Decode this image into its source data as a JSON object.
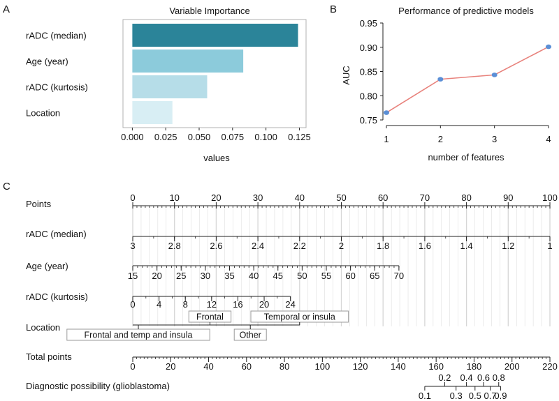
{
  "panel_labels": {
    "a": "A",
    "b": "B",
    "c": "C"
  },
  "colors": {
    "bar1": "#2b8499",
    "bar2": "#8ccbdb",
    "bar3": "#b6dde8",
    "bar4": "#d8eef4",
    "line": "#e8827c",
    "point": "#5b8fd6",
    "grid": "#d6d6d6",
    "axis": "#222222",
    "boxtext": "#888888"
  },
  "chart_data": [
    {
      "type": "bar",
      "id": "A",
      "title": "Variable Importance",
      "xlabel": "values",
      "ylabel": "",
      "categories": [
        "rADC (median)",
        "Age (year)",
        "rADC (kurtosis)",
        "Location"
      ],
      "values": [
        0.124,
        0.083,
        0.056,
        0.03
      ],
      "xlim": [
        -0.007,
        0.13
      ],
      "xticks": [
        "0.000",
        "0.025",
        "0.050",
        "0.075",
        "0.100",
        "0.125"
      ]
    },
    {
      "type": "line",
      "id": "B",
      "title": "Performance of predictive models",
      "xlabel": "number of features",
      "ylabel": "AUC",
      "x": [
        1,
        2,
        3,
        4
      ],
      "y": [
        0.765,
        0.834,
        0.843,
        0.901
      ],
      "xlim": [
        1,
        4
      ],
      "ylim": [
        0.75,
        0.95
      ],
      "xticks": [
        "1",
        "2",
        "3",
        "4"
      ],
      "yticks": [
        "0.75",
        "0.80",
        "0.85",
        "0.90",
        "0.95"
      ]
    },
    {
      "type": "nomogram",
      "id": "C",
      "points_range": [
        0,
        100
      ],
      "rows": [
        {
          "label": "Points",
          "kind": "points",
          "ticks": [
            "0",
            "10",
            "20",
            "30",
            "40",
            "50",
            "60",
            "70",
            "80",
            "90",
            "100"
          ]
        },
        {
          "label": "rADC (median)",
          "kind": "scale",
          "ticks": [
            "3",
            "2.8",
            "2.6",
            "2.4",
            "2.2",
            "2",
            "1.8",
            "1.6",
            "1.4",
            "1.2",
            "1"
          ],
          "points": [
            0,
            10,
            20,
            30,
            40,
            50,
            60,
            70,
            80,
            90,
            100
          ]
        },
        {
          "label": "Age (year)",
          "kind": "scale",
          "ticks": [
            "15",
            "20",
            "25",
            "30",
            "35",
            "40",
            "45",
            "50",
            "55",
            "60",
            "65",
            "70"
          ],
          "points": [
            0,
            5.8,
            11.6,
            17.4,
            23.2,
            29,
            34.8,
            40.6,
            46.4,
            52.2,
            58,
            63.8
          ]
        },
        {
          "label": "rADC (kurtosis)",
          "kind": "scale",
          "ticks": [
            "0",
            "4",
            "8",
            "12",
            "16",
            "20",
            "24"
          ],
          "points": [
            0,
            6.3,
            12.6,
            18.9,
            25.2,
            31.5,
            37.8
          ]
        },
        {
          "label": "Location",
          "kind": "categorical",
          "levels_upper": [
            "Frontal",
            "Temporal or insula"
          ],
          "levels_upper_points": [
            18.5,
            40
          ],
          "levels_lower": [
            "Frontal and temp and insula",
            "Other"
          ],
          "levels_lower_points": [
            0,
            26
          ],
          "line_points": [
            0,
            40
          ]
        },
        {
          "label": "Total points",
          "kind": "total",
          "ticks": [
            "0",
            "20",
            "40",
            "60",
            "80",
            "100",
            "120",
            "140",
            "160",
            "180",
            "200",
            "220"
          ],
          "range": [
            0,
            220
          ]
        },
        {
          "label": "Diagnostic possibility (glioblastoma)",
          "kind": "probability",
          "ticks_upper": [
            "0.2",
            "0.4",
            "0.6",
            "0.8"
          ],
          "ticks_upper_totals": [
            164.5,
            176,
            185,
            193
          ],
          "ticks_lower": [
            "0.1",
            "0.3",
            "0.5",
            "0.7",
            "0.9"
          ],
          "ticks_lower_totals": [
            154,
            170.5,
            180.5,
            188.5,
            194
          ]
        }
      ]
    }
  ]
}
